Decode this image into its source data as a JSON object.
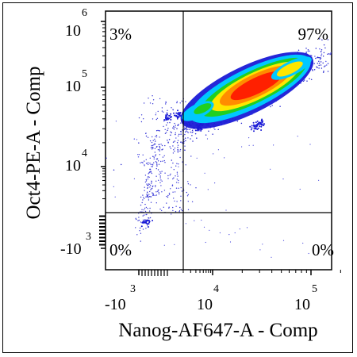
{
  "chart_data": {
    "type": "scatter",
    "title": "",
    "xlabel": "Nanog-AF647-A - Comp",
    "ylabel": "Oct4-PE-A - Comp",
    "x_scale": "biexponential",
    "y_scale": "biexponential",
    "x_ticks": [
      {
        "base": "-10",
        "exp": "3",
        "value": -1000
      },
      {
        "base": "10",
        "exp": "4",
        "value": 10000
      },
      {
        "base": "10",
        "exp": "5",
        "value": 100000
      }
    ],
    "y_ticks": [
      {
        "base": "10",
        "exp": "6",
        "value": 1000000
      },
      {
        "base": "10",
        "exp": "5",
        "value": 100000
      },
      {
        "base": "10",
        "exp": "4",
        "value": 10000
      },
      {
        "base": "-10",
        "exp": "3",
        "value": -1000
      }
    ],
    "gates": {
      "x_threshold": 4000,
      "y_threshold": 2000
    },
    "quadrants": {
      "top_left": "3%",
      "top_right": "97%",
      "bottom_left": "0%",
      "bottom_right": "0%"
    },
    "population": {
      "main_cluster_center": {
        "x": 25000,
        "y": 100000
      },
      "colormap": [
        "#1a1ad6",
        "#00c8ff",
        "#20d020",
        "#ffe600",
        "#ff8c00",
        "#ff2000"
      ]
    },
    "grid": false,
    "legend": "none"
  }
}
